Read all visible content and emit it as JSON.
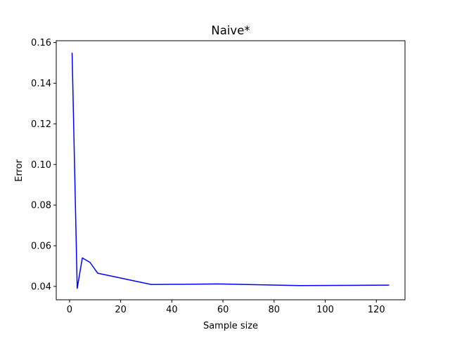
{
  "chart_data": {
    "type": "line",
    "title": "Naive*",
    "xlabel": "Sample size",
    "ylabel": "Error",
    "xlim": [
      -5.2,
      131.2
    ],
    "ylim": [
      0.0334,
      0.1609
    ],
    "grid": false,
    "x_ticks": [
      0,
      20,
      40,
      60,
      80,
      100,
      120
    ],
    "y_ticks": [
      0.04,
      0.06,
      0.08,
      0.1,
      0.12,
      0.14,
      0.16
    ],
    "x_tick_labels": [
      "0",
      "20",
      "40",
      "60",
      "80",
      "100",
      "120"
    ],
    "y_tick_labels": [
      "0.04",
      "0.06",
      "0.08",
      "0.10",
      "0.12",
      "0.14",
      "0.16"
    ],
    "series": [
      {
        "color": "#0000ff",
        "x": [
          1,
          3,
          5,
          8,
          11,
          32,
          58,
          90,
          125
        ],
        "y": [
          0.155,
          0.039,
          0.054,
          0.0518,
          0.0465,
          0.0409,
          0.0412,
          0.0404,
          0.0406
        ]
      }
    ]
  }
}
